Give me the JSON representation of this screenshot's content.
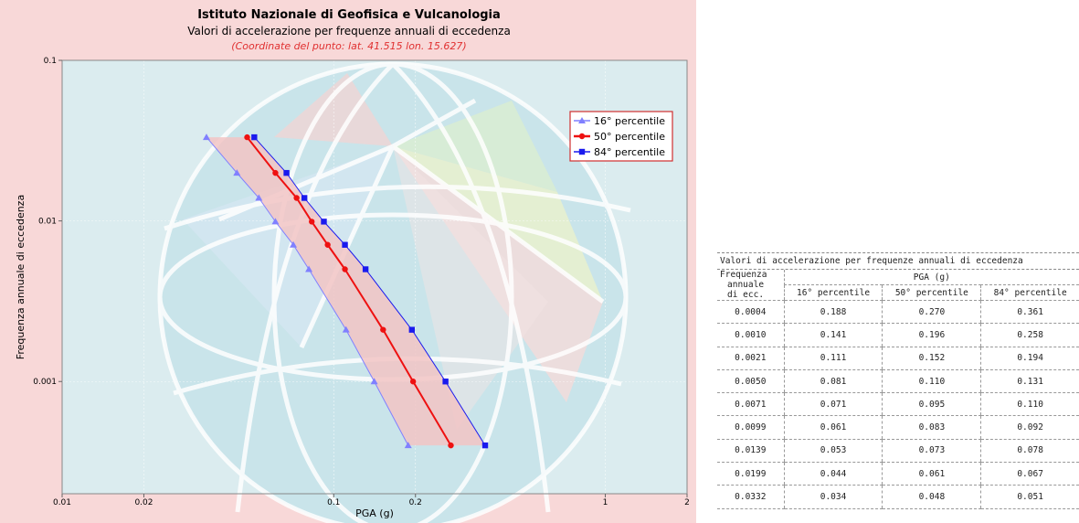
{
  "chart": {
    "title": "Istituto Nazionale di Geofisica e Vulcanologia",
    "subtitle": "Valori di accelerazione per frequenze annuali di eccedenza",
    "coordinates": "(Coordinate del punto: lat. 41.515 lon. 15.627)",
    "colors": {
      "p16": "#8080ff",
      "p50": "#ee1111",
      "p84": "#1a1aee",
      "band": "#f2c4c4",
      "panel_bg": "#f8d8d8",
      "plot_bg": "#dbecef"
    }
  },
  "chart_data": {
    "type": "line",
    "title": "Istituto Nazionale di Geofisica e Vulcanologia",
    "subtitle": "Valori di accelerazione per frequenze annuali di eccedenza",
    "annotation": "(Coordinate del punto: lat. 41.515 lon. 15.627)",
    "xlabel": "PGA (g)",
    "ylabel": "Frequenza annuale di eccedenza",
    "xscale": "log",
    "yscale": "log",
    "xlim": [
      0.01,
      2
    ],
    "ylim": [
      0.0002,
      0.1
    ],
    "xticks": [
      "0.01",
      "0.02",
      "0.1",
      "0.2",
      "1",
      "2"
    ],
    "yticks": [
      "0.001",
      "0.01",
      "0.1"
    ],
    "legend_position": "top-right",
    "y": [
      0.0004,
      0.001,
      0.0021,
      0.005,
      0.0071,
      0.0099,
      0.0139,
      0.0199,
      0.0332
    ],
    "series": [
      {
        "name": "16° percentile",
        "color": "#8080ff",
        "marker": "triangle",
        "x": [
          0.188,
          0.141,
          0.111,
          0.081,
          0.071,
          0.061,
          0.053,
          0.044,
          0.034
        ]
      },
      {
        "name": "50° percentile",
        "color": "#ee1111",
        "marker": "circle",
        "x": [
          0.27,
          0.196,
          0.152,
          0.11,
          0.095,
          0.083,
          0.073,
          0.061,
          0.048
        ]
      },
      {
        "name": "84° percentile",
        "color": "#1a1aee",
        "marker": "square",
        "x": [
          0.361,
          0.258,
          0.194,
          0.131,
          0.11,
          0.092,
          0.078,
          0.067,
          0.051
        ]
      }
    ]
  },
  "table": {
    "title": "Valori di accelerazione per frequenze annuali di eccedenza",
    "col0_header": [
      "Frequenza",
      "annuale",
      "di ecc."
    ],
    "group_header": "PGA (g)",
    "col_headers": [
      "16° percentile",
      "50° percentile",
      "84° percentile"
    ],
    "rows": [
      [
        "0.0004",
        "0.188",
        "0.270",
        "0.361"
      ],
      [
        "0.0010",
        "0.141",
        "0.196",
        "0.258"
      ],
      [
        "0.0021",
        "0.111",
        "0.152",
        "0.194"
      ],
      [
        "0.0050",
        "0.081",
        "0.110",
        "0.131"
      ],
      [
        "0.0071",
        "0.071",
        "0.095",
        "0.110"
      ],
      [
        "0.0099",
        "0.061",
        "0.083",
        "0.092"
      ],
      [
        "0.0139",
        "0.053",
        "0.073",
        "0.078"
      ],
      [
        "0.0199",
        "0.044",
        "0.061",
        "0.067"
      ],
      [
        "0.0332",
        "0.034",
        "0.048",
        "0.051"
      ]
    ]
  }
}
